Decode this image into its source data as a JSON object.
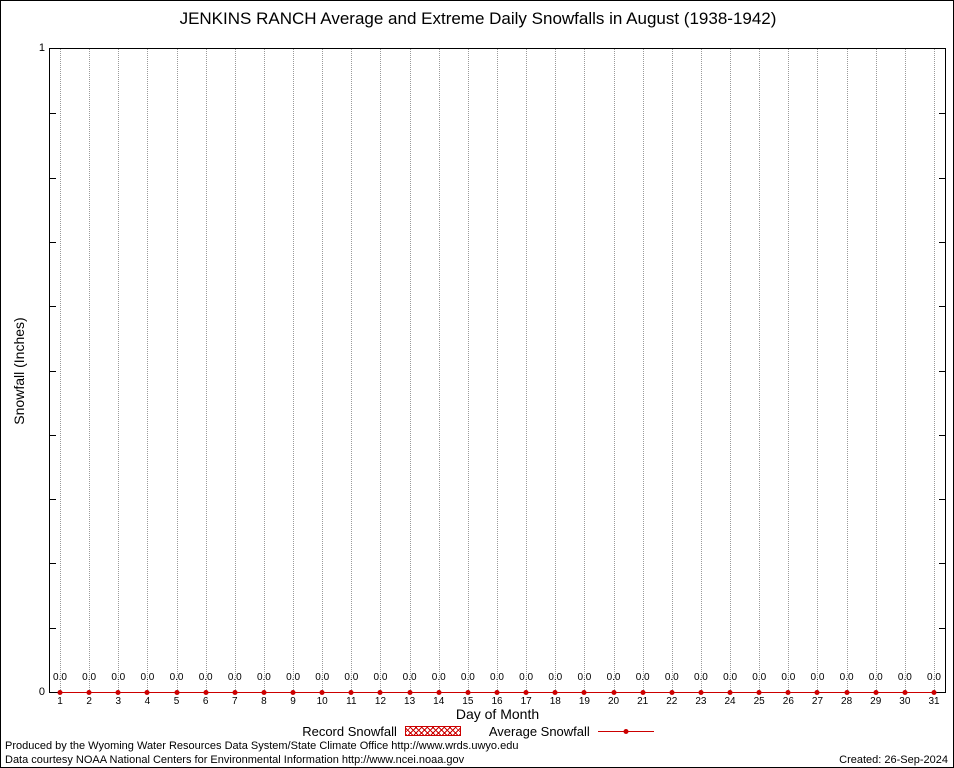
{
  "chart_data": {
    "type": "line",
    "title": "JENKINS RANCH Average and Extreme Daily Snowfalls in August (1938-1942)",
    "xlabel": "Day of Month",
    "ylabel": "Snowfall (Inches)",
    "ylim": [
      0,
      1
    ],
    "ytick_labels": [
      "0",
      "1"
    ],
    "grid": "vertical-dotted",
    "legend_position": "bottom-center",
    "x": [
      1,
      2,
      3,
      4,
      5,
      6,
      7,
      8,
      9,
      10,
      11,
      12,
      13,
      14,
      15,
      16,
      17,
      18,
      19,
      20,
      21,
      22,
      23,
      24,
      25,
      26,
      27,
      28,
      29,
      30,
      31
    ],
    "series": [
      {
        "name": "Record Snowfall",
        "style": "hatched-box",
        "color": "#cc0000",
        "values": [
          0.0,
          0.0,
          0.0,
          0.0,
          0.0,
          0.0,
          0.0,
          0.0,
          0.0,
          0.0,
          0.0,
          0.0,
          0.0,
          0.0,
          0.0,
          0.0,
          0.0,
          0.0,
          0.0,
          0.0,
          0.0,
          0.0,
          0.0,
          0.0,
          0.0,
          0.0,
          0.0,
          0.0,
          0.0,
          0.0,
          0.0
        ]
      },
      {
        "name": "Average Snowfall",
        "style": "line-points",
        "color": "#cc0000",
        "values": [
          0.0,
          0.0,
          0.0,
          0.0,
          0.0,
          0.0,
          0.0,
          0.0,
          0.0,
          0.0,
          0.0,
          0.0,
          0.0,
          0.0,
          0.0,
          0.0,
          0.0,
          0.0,
          0.0,
          0.0,
          0.0,
          0.0,
          0.0,
          0.0,
          0.0,
          0.0,
          0.0,
          0.0,
          0.0,
          0.0,
          0.0
        ]
      }
    ],
    "point_label_format": "0.0"
  },
  "legend": {
    "record_label": "Record Snowfall",
    "average_label": "Average Snowfall"
  },
  "footer": {
    "line1": "Produced by the Wyoming Water Resources Data System/State Climate Office http://www.wrds.uwyo.edu",
    "line2": "Data courtesy NOAA National Centers for Environmental Information http://www.ncei.noaa.gov",
    "created": "Created: 26-Sep-2024"
  },
  "colors": {
    "accent_red": "#cc0000",
    "gridline": "#9a9a9a",
    "axis": "#000000"
  }
}
